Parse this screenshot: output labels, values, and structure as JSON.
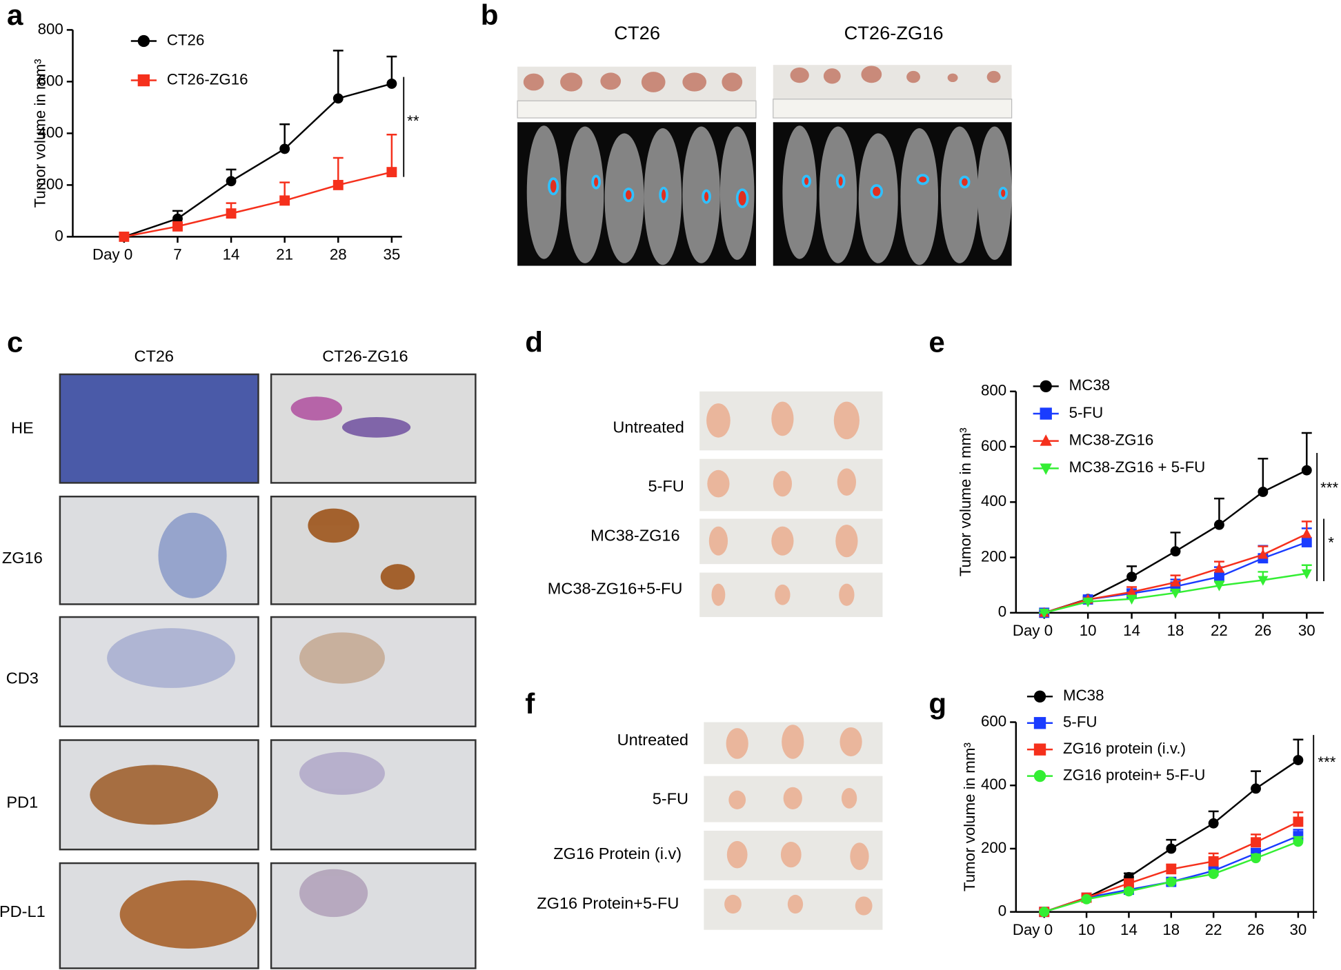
{
  "panel_labels": [
    "a",
    "b",
    "c",
    "d",
    "e",
    "f",
    "g"
  ],
  "panel_b": {
    "columns": [
      "CT26",
      "CT26-ZG16"
    ]
  },
  "panel_c": {
    "columns": [
      "CT26",
      "CT26-ZG16"
    ],
    "rows": [
      "HE",
      "ZG16",
      "CD3",
      "PD1",
      "PD-L1"
    ]
  },
  "panel_d": {
    "rows": [
      "Untreated",
      "5-FU",
      "MC38-ZG16",
      "MC38-ZG16+5-FU"
    ]
  },
  "panel_f": {
    "rows": [
      "Untreated",
      "5-FU",
      "ZG16 Protein (i.v)",
      "ZG16 Protein+5-FU"
    ]
  },
  "chart_data": [
    {
      "type": "line",
      "y_label": "Tumor volume in mm³",
      "categories": [
        "Day 0",
        "7",
        "14",
        "21",
        "28",
        "35"
      ],
      "ylim": [
        0,
        800
      ],
      "yticks": [
        0,
        200,
        400,
        600,
        800
      ],
      "series": [
        {
          "name": "CT26",
          "color": "#000000",
          "marker": "circle",
          "values": [
            0,
            70,
            215,
            340,
            535,
            592
          ],
          "errors": [
            0,
            30,
            45,
            95,
            185,
            105
          ]
        },
        {
          "name": "CT26-ZG16",
          "color": "#f5301c",
          "marker": "square",
          "values": [
            0,
            40,
            90,
            140,
            200,
            250
          ],
          "errors": [
            0,
            8,
            40,
            70,
            105,
            145
          ]
        }
      ],
      "annotations": [
        "**"
      ]
    },
    {
      "type": "line",
      "y_label": "Tumor volume in mm³",
      "categories": [
        "Day 0",
        "10",
        "14",
        "18",
        "22",
        "26",
        "30"
      ],
      "ylim": [
        0,
        800
      ],
      "yticks": [
        0,
        200,
        400,
        600,
        800
      ],
      "series": [
        {
          "name": "MC38",
          "color": "#000000",
          "marker": "circle",
          "values": [
            0,
            50,
            130,
            222,
            318,
            437,
            515
          ],
          "errors": [
            0,
            8,
            38,
            68,
            95,
            120,
            135
          ]
        },
        {
          "name": "5-FU",
          "color": "#1a3cff",
          "marker": "square",
          "values": [
            0,
            48,
            70,
            95,
            130,
            197,
            255
          ],
          "errors": [
            0,
            5,
            15,
            25,
            35,
            45,
            50
          ]
        },
        {
          "name": "MC38-ZG16",
          "color": "#f5301c",
          "marker": "triangle",
          "values": [
            0,
            48,
            75,
            110,
            160,
            210,
            285
          ],
          "errors": [
            0,
            5,
            18,
            25,
            25,
            30,
            45
          ]
        },
        {
          "name": "MC38-ZG16 + 5-FU",
          "color": "#33ee33",
          "marker": "triangle-down",
          "values": [
            0,
            40,
            50,
            72,
            98,
            118,
            142
          ],
          "errors": [
            0,
            5,
            10,
            12,
            15,
            30,
            30
          ]
        }
      ],
      "annotations": [
        "***",
        "*"
      ]
    },
    {
      "type": "line",
      "y_label": "Tumor volume in mm³",
      "categories": [
        "Day 0",
        "10",
        "14",
        "18",
        "22",
        "26",
        "30"
      ],
      "ylim": [
        0,
        600
      ],
      "yticks": [
        0,
        200,
        400,
        600
      ],
      "series": [
        {
          "name": "MC38",
          "color": "#000000",
          "marker": "circle",
          "values": [
            0,
            45,
            110,
            200,
            280,
            390,
            480
          ],
          "errors": [
            0,
            8,
            12,
            28,
            38,
            55,
            65
          ]
        },
        {
          "name": "5-FU",
          "color": "#1a3cff",
          "marker": "square",
          "values": [
            0,
            45,
            70,
            95,
            130,
            185,
            240
          ],
          "errors": [
            0,
            5,
            8,
            8,
            10,
            15,
            20
          ]
        },
        {
          "name": "ZG16 protein (i.v.)",
          "color": "#f5301c",
          "marker": "square",
          "values": [
            0,
            45,
            90,
            135,
            160,
            220,
            285
          ],
          "errors": [
            0,
            5,
            10,
            15,
            25,
            25,
            30
          ]
        },
        {
          "name": "ZG16 protein+ 5-F-U",
          "color": "#33ee33",
          "marker": "circle",
          "values": [
            0,
            40,
            65,
            95,
            120,
            170,
            222
          ],
          "errors": [
            0,
            5,
            8,
            8,
            10,
            12,
            15
          ]
        }
      ],
      "annotations": [
        "***"
      ]
    }
  ]
}
